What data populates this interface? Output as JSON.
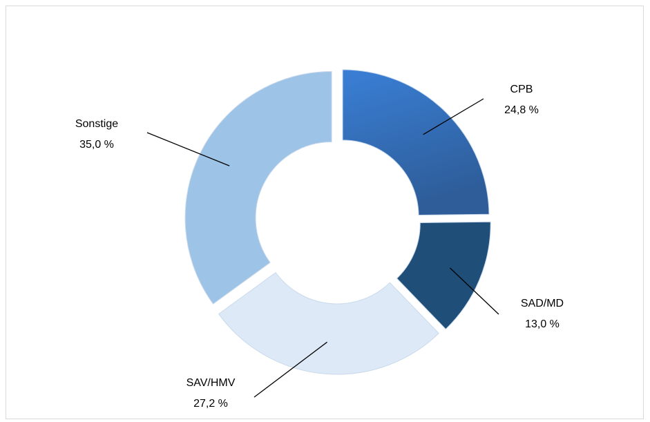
{
  "chart_data": {
    "type": "donut",
    "categories": [
      "CPB",
      "SAD/MD",
      "SAV/HMV",
      "Sonstige"
    ],
    "values": [
      24.8,
      13.0,
      27.2,
      35.0
    ],
    "value_labels": [
      "24,8 %",
      "13,0 %",
      "27,2 %",
      "35,0 %"
    ],
    "colors": [
      "#3573c4",
      "#1f4e79",
      "#dde9f6",
      "#9dc3e6"
    ]
  }
}
